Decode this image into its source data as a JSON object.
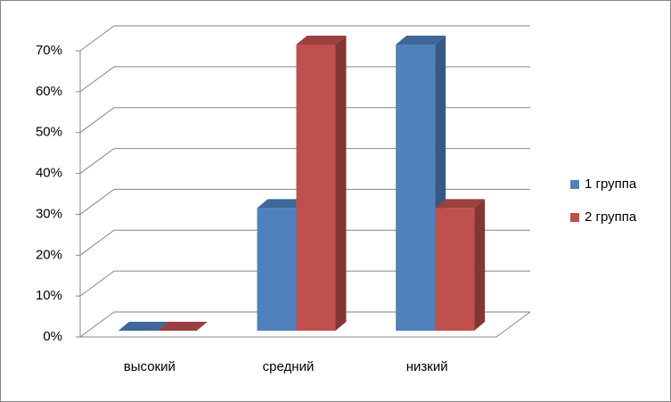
{
  "chart_data": {
    "type": "bar3d",
    "categories": [
      "высокий",
      "средний",
      "низкий"
    ],
    "series": [
      {
        "name": "1 группа",
        "color": "#4f81bd",
        "values": [
          0,
          30,
          70
        ]
      },
      {
        "name": "2 группа",
        "color": "#c0504d",
        "values": [
          0,
          70,
          30
        ]
      }
    ],
    "ylim": [
      0,
      70
    ],
    "yticks": [
      {
        "value": 0,
        "label": "0%"
      },
      {
        "value": 10,
        "label": "10%"
      },
      {
        "value": 20,
        "label": "20%"
      },
      {
        "value": 30,
        "label": "30%"
      },
      {
        "value": 40,
        "label": "40%"
      },
      {
        "value": 50,
        "label": "50%"
      },
      {
        "value": 60,
        "label": "60%"
      },
      {
        "value": 70,
        "label": "70%"
      }
    ],
    "grid": true,
    "legend": "right"
  }
}
